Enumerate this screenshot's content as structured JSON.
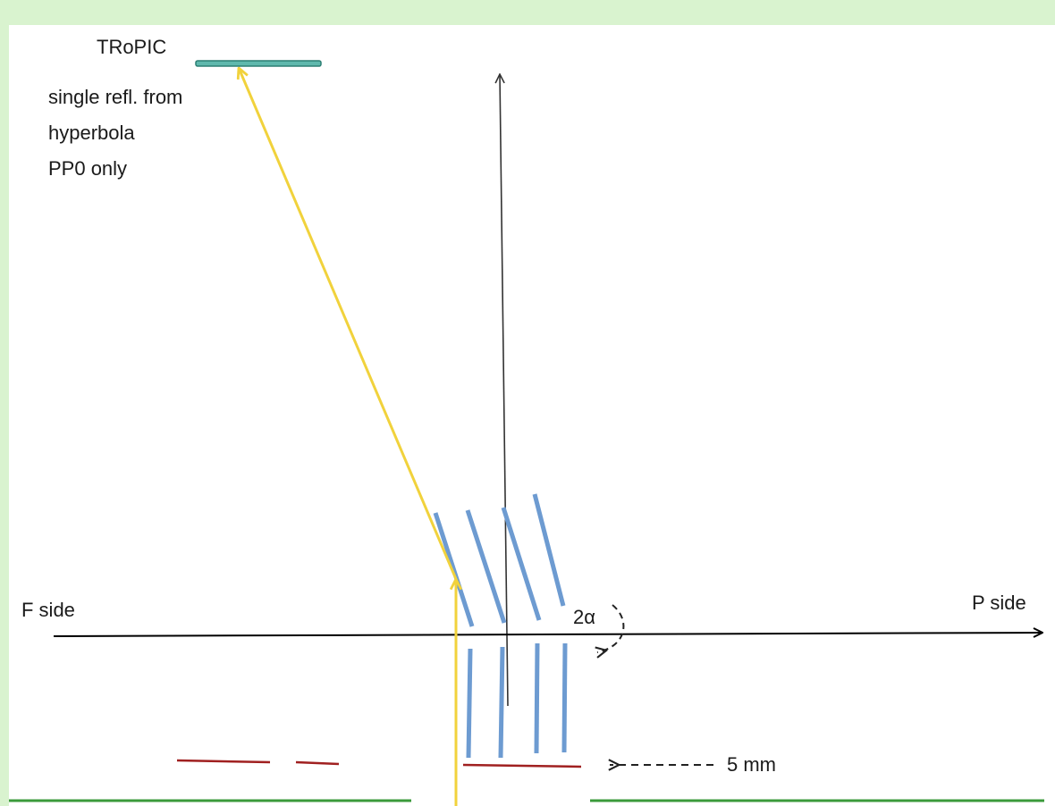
{
  "labels": {
    "detector": "TRoPIC",
    "note_line1": "single refl. from",
    "note_line2": "hyperbola",
    "note_line3": "PP0 only",
    "f_side": "F side",
    "p_side": "P side",
    "angle": "2α",
    "distance": "5 mm"
  },
  "colors": {
    "background": "#d9f3cf",
    "canvas": "#ffffff",
    "axis": "#000000",
    "vertical_axis": "#333333",
    "mirror_plates": "#6d9bd1",
    "xray_beam": "#f1d23c",
    "detector_fill": "#5fb8ad",
    "detector_stroke": "#2c7f73",
    "dark_red_marks": "#a02020",
    "green_floor": "#3a9a3a",
    "dashed_arrows": "#222222"
  }
}
